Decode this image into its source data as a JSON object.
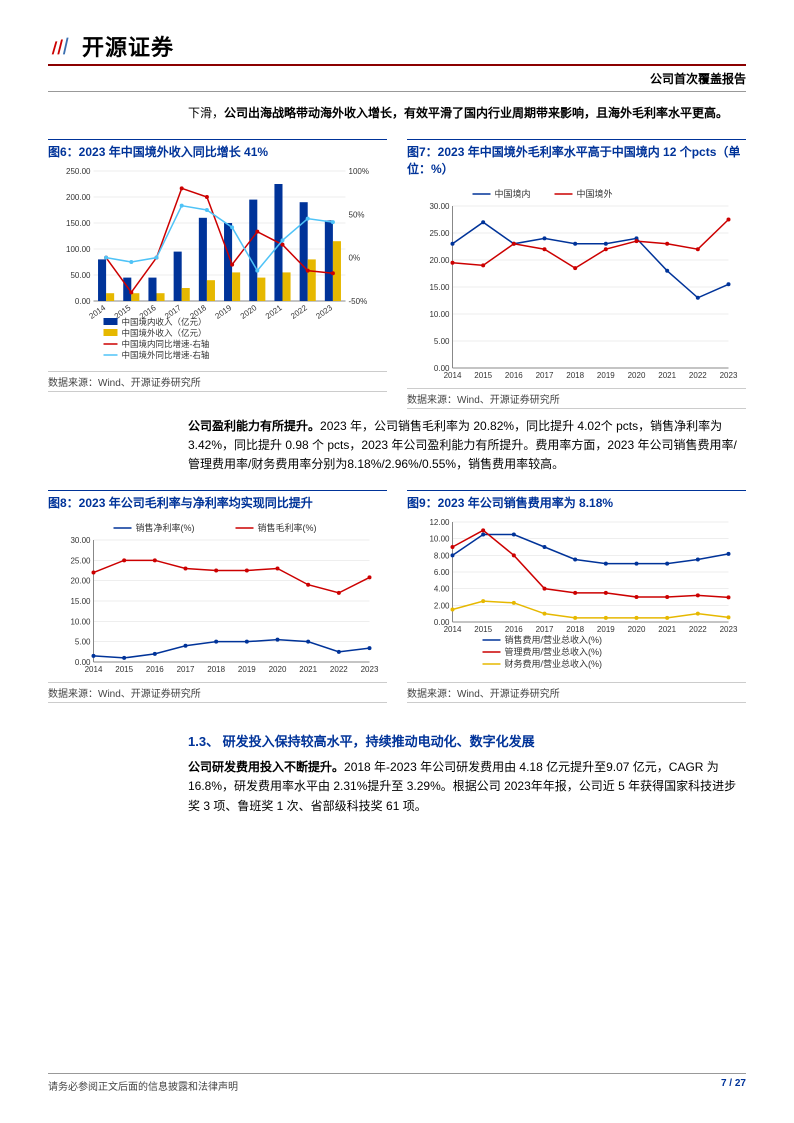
{
  "header": {
    "brand": "开源证券",
    "doc_type": "公司首次覆盖报告"
  },
  "intro": {
    "line1": "下滑，",
    "bold": "公司出海战略带动海外收入增长，有效平滑了国内行业周期带来影响，且海外毛利率水平更高。"
  },
  "years": [
    "2014",
    "2015",
    "2016",
    "2017",
    "2018",
    "2019",
    "2020",
    "2021",
    "2022",
    "2023"
  ],
  "chart6": {
    "title": "图6：2023 年中国境外收入同比增长 41%",
    "type": "bar+line",
    "categories": [
      "2014",
      "2015",
      "2016",
      "2017",
      "2018",
      "2019",
      "2020",
      "2021",
      "2022",
      "2023"
    ],
    "bars": [
      {
        "label": "中国境内收入（亿元）",
        "color": "#003399",
        "values": [
          80,
          45,
          45,
          95,
          160,
          150,
          195,
          225,
          190,
          155
        ]
      },
      {
        "label": "中国境外收入（亿元）",
        "color": "#e6b800",
        "values": [
          15,
          15,
          15,
          25,
          40,
          55,
          45,
          55,
          80,
          115
        ]
      }
    ],
    "lines": [
      {
        "label": "中国境内同比增速-右轴",
        "color": "#cc0000",
        "values": [
          0,
          -40,
          0,
          80,
          70,
          -8,
          30,
          15,
          -15,
          -18
        ]
      },
      {
        "label": "中国境外同比增速-右轴",
        "color": "#4fc3f7",
        "values": [
          0,
          -5,
          0,
          60,
          55,
          35,
          -15,
          20,
          45,
          41
        ]
      }
    ],
    "yleft": {
      "min": 0,
      "max": 250,
      "step": 50,
      "labels": [
        "0.00",
        "50.00",
        "100.00",
        "150.00",
        "200.00",
        "250.00"
      ]
    },
    "yright": {
      "min": -50,
      "max": 100,
      "step": 50,
      "labels": [
        "-50%",
        "0%",
        "50%",
        "100%"
      ]
    },
    "grid_color": "#dddddd",
    "axis_color": "#888888",
    "label_fontsize": 8,
    "source": "数据来源：Wind、开源证券研究所"
  },
  "chart7": {
    "title": "图7：2023 年中国境外毛利率水平高于中国境内 12 个pcts（单位：%）",
    "type": "line",
    "categories": [
      "2014",
      "2015",
      "2016",
      "2017",
      "2018",
      "2019",
      "2020",
      "2021",
      "2022",
      "2023"
    ],
    "series": [
      {
        "label": "中国境内",
        "color": "#003399",
        "values": [
          23,
          27,
          23,
          24,
          23,
          23,
          24,
          18,
          13,
          15.5
        ]
      },
      {
        "label": "中国境外",
        "color": "#cc0000",
        "values": [
          19.5,
          19,
          23,
          22,
          18.5,
          22,
          23.5,
          23,
          22,
          27.5
        ]
      }
    ],
    "ylim": [
      0,
      30
    ],
    "ytick_step": 5,
    "ylabels": [
      "0.00",
      "5.00",
      "10.00",
      "15.00",
      "20.00",
      "25.00",
      "30.00"
    ],
    "grid_color": "#dddddd",
    "axis_color": "#888888",
    "label_fontsize": 8,
    "legend_pos": "top",
    "source": "数据来源：Wind、开源证券研究所"
  },
  "mid": {
    "bold": "公司盈利能力有所提升。",
    "text": "2023 年，公司销售毛利率为 20.82%，同比提升 4.02个 pcts，销售净利率为 3.42%，同比提升 0.98 个 pcts，2023 年公司盈利能力有所提升。费用率方面，2023 年公司销售费用率/管理费用率/财务费用率分别为8.18%/2.96%/0.55%，销售费用率较高。"
  },
  "chart8": {
    "title": "图8：2023 年公司毛利率与净利率均实现同比提升",
    "type": "line",
    "categories": [
      "2014",
      "2015",
      "2016",
      "2017",
      "2018",
      "2019",
      "2020",
      "2021",
      "2022",
      "2023"
    ],
    "series": [
      {
        "label": "销售净利率(%)",
        "color": "#003399",
        "values": [
          1.5,
          1,
          2,
          4,
          5,
          5,
          5.5,
          5,
          2.5,
          3.4
        ]
      },
      {
        "label": "销售毛利率(%)",
        "color": "#cc0000",
        "values": [
          22,
          25,
          25,
          23,
          22.5,
          22.5,
          23,
          19,
          17,
          20.8
        ]
      }
    ],
    "ylim": [
      0,
      30
    ],
    "ytick_step": 5,
    "ylabels": [
      "0.00",
      "5.00",
      "10.00",
      "15.00",
      "20.00",
      "25.00",
      "30.00"
    ],
    "grid_color": "#dddddd",
    "axis_color": "#888888",
    "label_fontsize": 8,
    "legend_pos": "top",
    "source": "数据来源：Wind、开源证券研究所"
  },
  "chart9": {
    "title": "图9：2023 年公司销售费用率为 8.18%",
    "type": "line",
    "categories": [
      "2014",
      "2015",
      "2016",
      "2017",
      "2018",
      "2019",
      "2020",
      "2021",
      "2022",
      "2023"
    ],
    "series": [
      {
        "label": "销售费用/营业总收入(%)",
        "color": "#003399",
        "values": [
          8,
          10.5,
          10.5,
          9,
          7.5,
          7,
          7,
          7,
          7.5,
          8.18
        ]
      },
      {
        "label": "管理费用/营业总收入(%)",
        "color": "#cc0000",
        "values": [
          9,
          11,
          8,
          4,
          3.5,
          3.5,
          3,
          3,
          3.2,
          2.96
        ]
      },
      {
        "label": "财务费用/营业总收入(%)",
        "color": "#e6b800",
        "values": [
          1.5,
          2.5,
          2.3,
          1,
          0.5,
          0.5,
          0.5,
          0.5,
          1,
          0.55
        ]
      }
    ],
    "ylim": [
      0,
      12
    ],
    "ytick_step": 2,
    "ylabels": [
      "0.00",
      "2.00",
      "4.00",
      "6.00",
      "8.00",
      "10.00",
      "12.00"
    ],
    "grid_color": "#dddddd",
    "axis_color": "#888888",
    "label_fontsize": 8,
    "legend_pos": "bottom",
    "source": "数据来源：Wind、开源证券研究所"
  },
  "section13": {
    "title": "1.3、 研发投入保持较高水平，持续推动电动化、数字化发展",
    "bold": "公司研发费用投入不断提升。",
    "text": "2018 年-2023 年公司研发费用由 4.18 亿元提升至9.07 亿元，CAGR 为 16.8%，研发费用率水平由 2.31%提升至 3.29%。根据公司 2023年年报，公司近 5 年获得国家科技进步奖 3 项、鲁班奖 1 次、省部级科技奖 61 项。"
  },
  "footer": {
    "disclaimer": "请务必参阅正文后面的信息披露和法律声明",
    "page": "7 / 27"
  }
}
